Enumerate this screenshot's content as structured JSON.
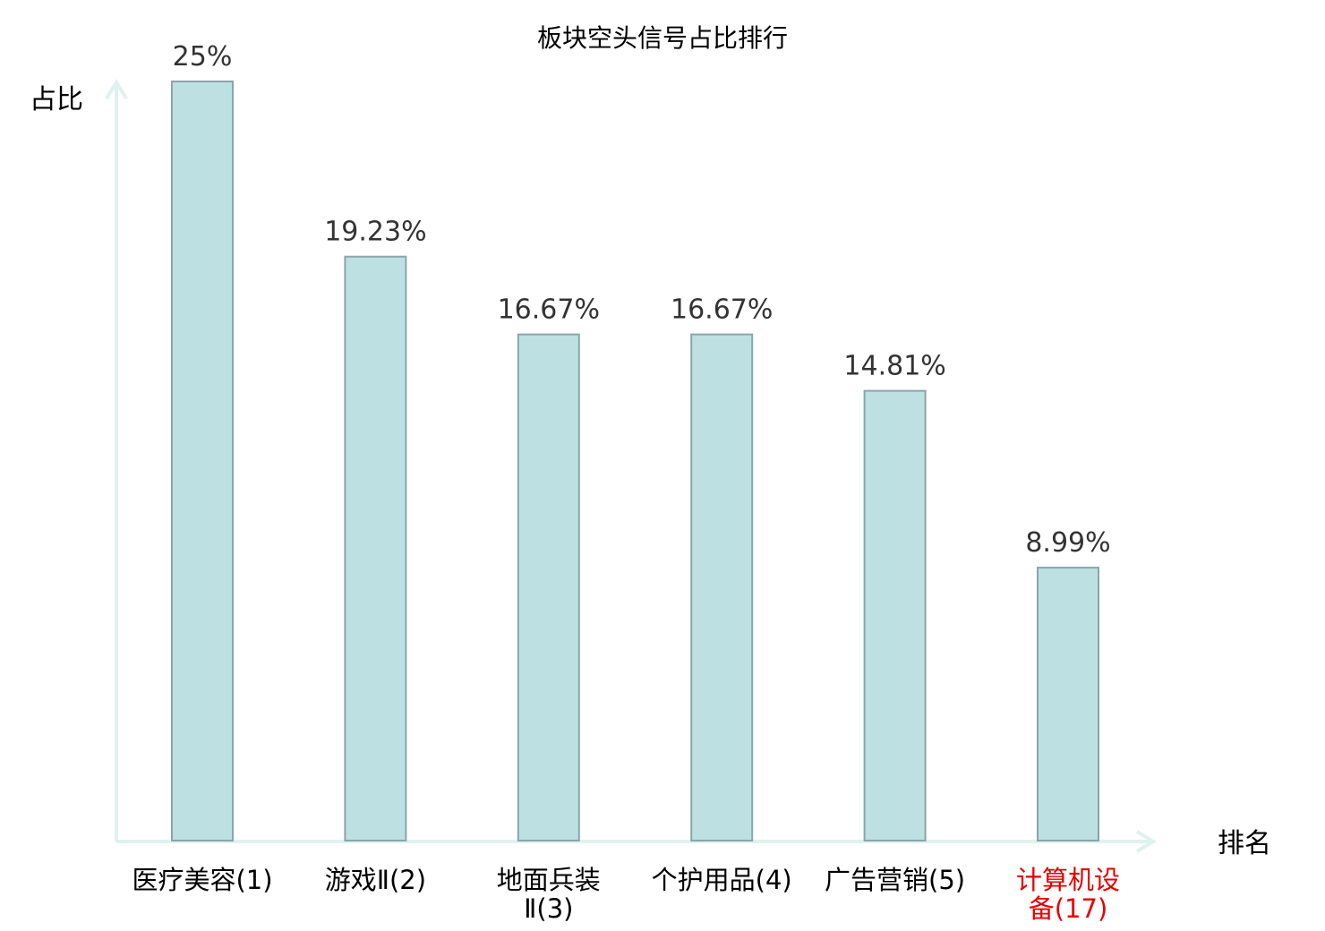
{
  "chart_data": {
    "type": "bar",
    "title": "板块空头信号占比排行",
    "ylabel": "占比",
    "xlabel": "排名",
    "ylim": [
      0,
      25
    ],
    "grid": false,
    "legend": "none",
    "categories": [
      [
        "医疗美容(1)"
      ],
      [
        "游戏Ⅱ(2)"
      ],
      [
        "地面兵装",
        "Ⅱ(3)"
      ],
      [
        "个护用品(4)"
      ],
      [
        "广告营销(5)"
      ],
      [
        "计算机设",
        "备(17)"
      ]
    ],
    "values": [
      25,
      19.23,
      16.67,
      16.67,
      14.81,
      8.99
    ],
    "value_labels": [
      "25%",
      "19.23%",
      "16.67%",
      "16.67%",
      "14.81%",
      "8.99%"
    ],
    "highlight_index": 5,
    "colors": {
      "bar_fill": "#bde0e2",
      "bar_stroke": "#8aa6a8",
      "axis": "#e0f2ef",
      "highlight_text": "#e60000",
      "value_text": "#333333"
    }
  }
}
